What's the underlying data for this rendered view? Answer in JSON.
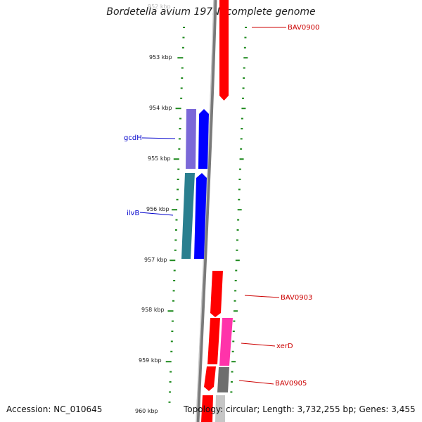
{
  "title": "Bordetella avium 197N, complete genome",
  "accession": "Accession: NC_010645",
  "topology": "Topology: circular; Length: 3,732,255 bp; Genes: 3,455",
  "colors": {
    "backbone": "#7a7a7a",
    "tick": "#1f8a1f",
    "red_gene": "#ff0000",
    "blue_gene": "#0000ff",
    "purple_gene": "#7b68d8",
    "teal_gene": "#2a7f8f",
    "magenta_gene": "#ff33aa",
    "gray_gene": "#6e6e6e",
    "label_red": "#cc0000",
    "label_blue": "#0000cc"
  },
  "position_labels": [
    "952 kbp",
    "953 kbp",
    "954 kbp",
    "955 kbp",
    "956 kbp",
    "957 kbp",
    "958 kbp",
    "959 kbp",
    "960 kbp"
  ],
  "gene_labels": {
    "bav0900": "BAV0900",
    "gcdh": "gcdH",
    "ilvb": "ilvB",
    "bav0903": "BAV0903",
    "xerd": "xerD",
    "bav0905": "BAV0905"
  }
}
